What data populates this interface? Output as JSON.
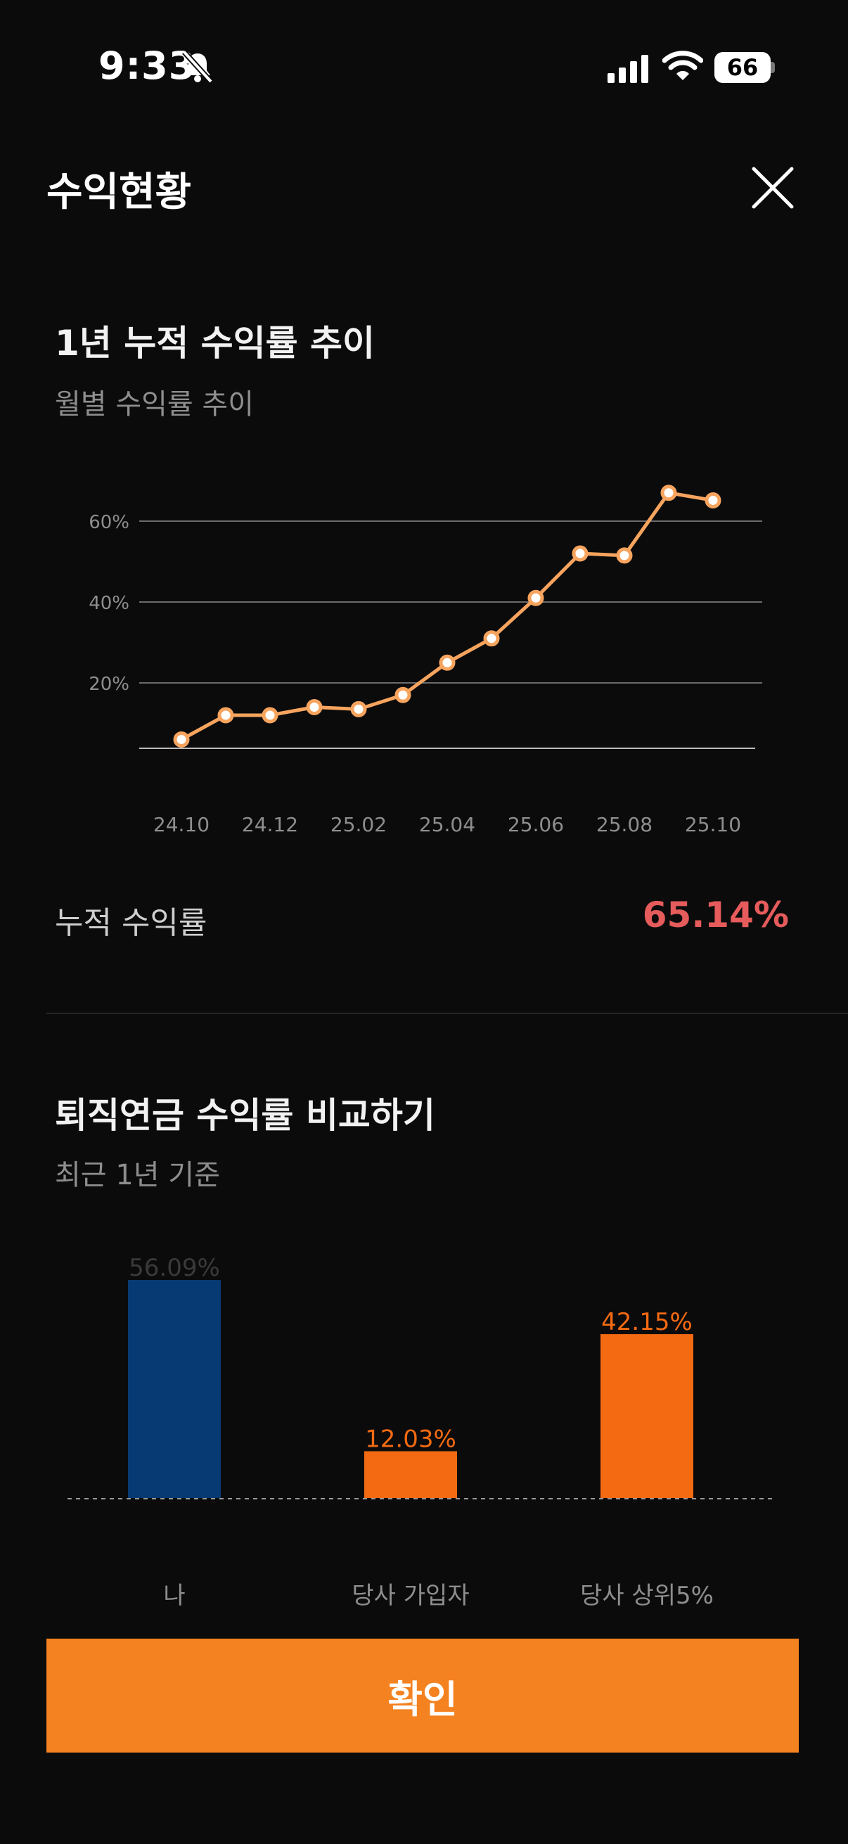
{
  "status_bar": {
    "time": "9:33",
    "battery": "66"
  },
  "header": {
    "title": "수익현황"
  },
  "trend": {
    "title": "1년 누적 수익률 추이",
    "subtitle": "월별 수익률 추이",
    "cumulative_label": "누적 수익률",
    "cumulative_value": "65.14%"
  },
  "comparison": {
    "title": "퇴직연금 수익률 비교하기",
    "subtitle": "최근 1년 기준"
  },
  "confirm_label": "확인",
  "colors": {
    "accent": "#f48220",
    "line": "#f7a45e",
    "positive": "#e65b5b",
    "me_bar": "#073a72",
    "peer_bar": "#f36a12"
  },
  "chart_data": [
    {
      "type": "line",
      "x": [
        "24.10",
        "24.11",
        "24.12",
        "25.01",
        "25.02",
        "25.03",
        "25.04",
        "25.05",
        "25.06",
        "25.07",
        "25.08",
        "25.09",
        "25.10"
      ],
      "x_tick_labels": [
        "24.10",
        "24.12",
        "25.02",
        "25.04",
        "25.06",
        "25.08",
        "25.10"
      ],
      "y_tick_labels": [
        "20%",
        "40%",
        "60%"
      ],
      "y_ticks": [
        20,
        40,
        60
      ],
      "values": [
        6,
        12,
        12,
        14,
        13.5,
        17,
        25,
        31,
        41,
        52,
        51.5,
        67,
        65.14
      ],
      "ylim": [
        4,
        66
      ],
      "grid": true
    },
    {
      "type": "bar",
      "categories": [
        "나",
        "당사 가입자",
        "당사 상위5%"
      ],
      "values": [
        56.09,
        12.03,
        42.15
      ],
      "value_labels": [
        "56.09%",
        "12.03%",
        "42.15%"
      ],
      "ylim": [
        0,
        56.09
      ]
    }
  ]
}
